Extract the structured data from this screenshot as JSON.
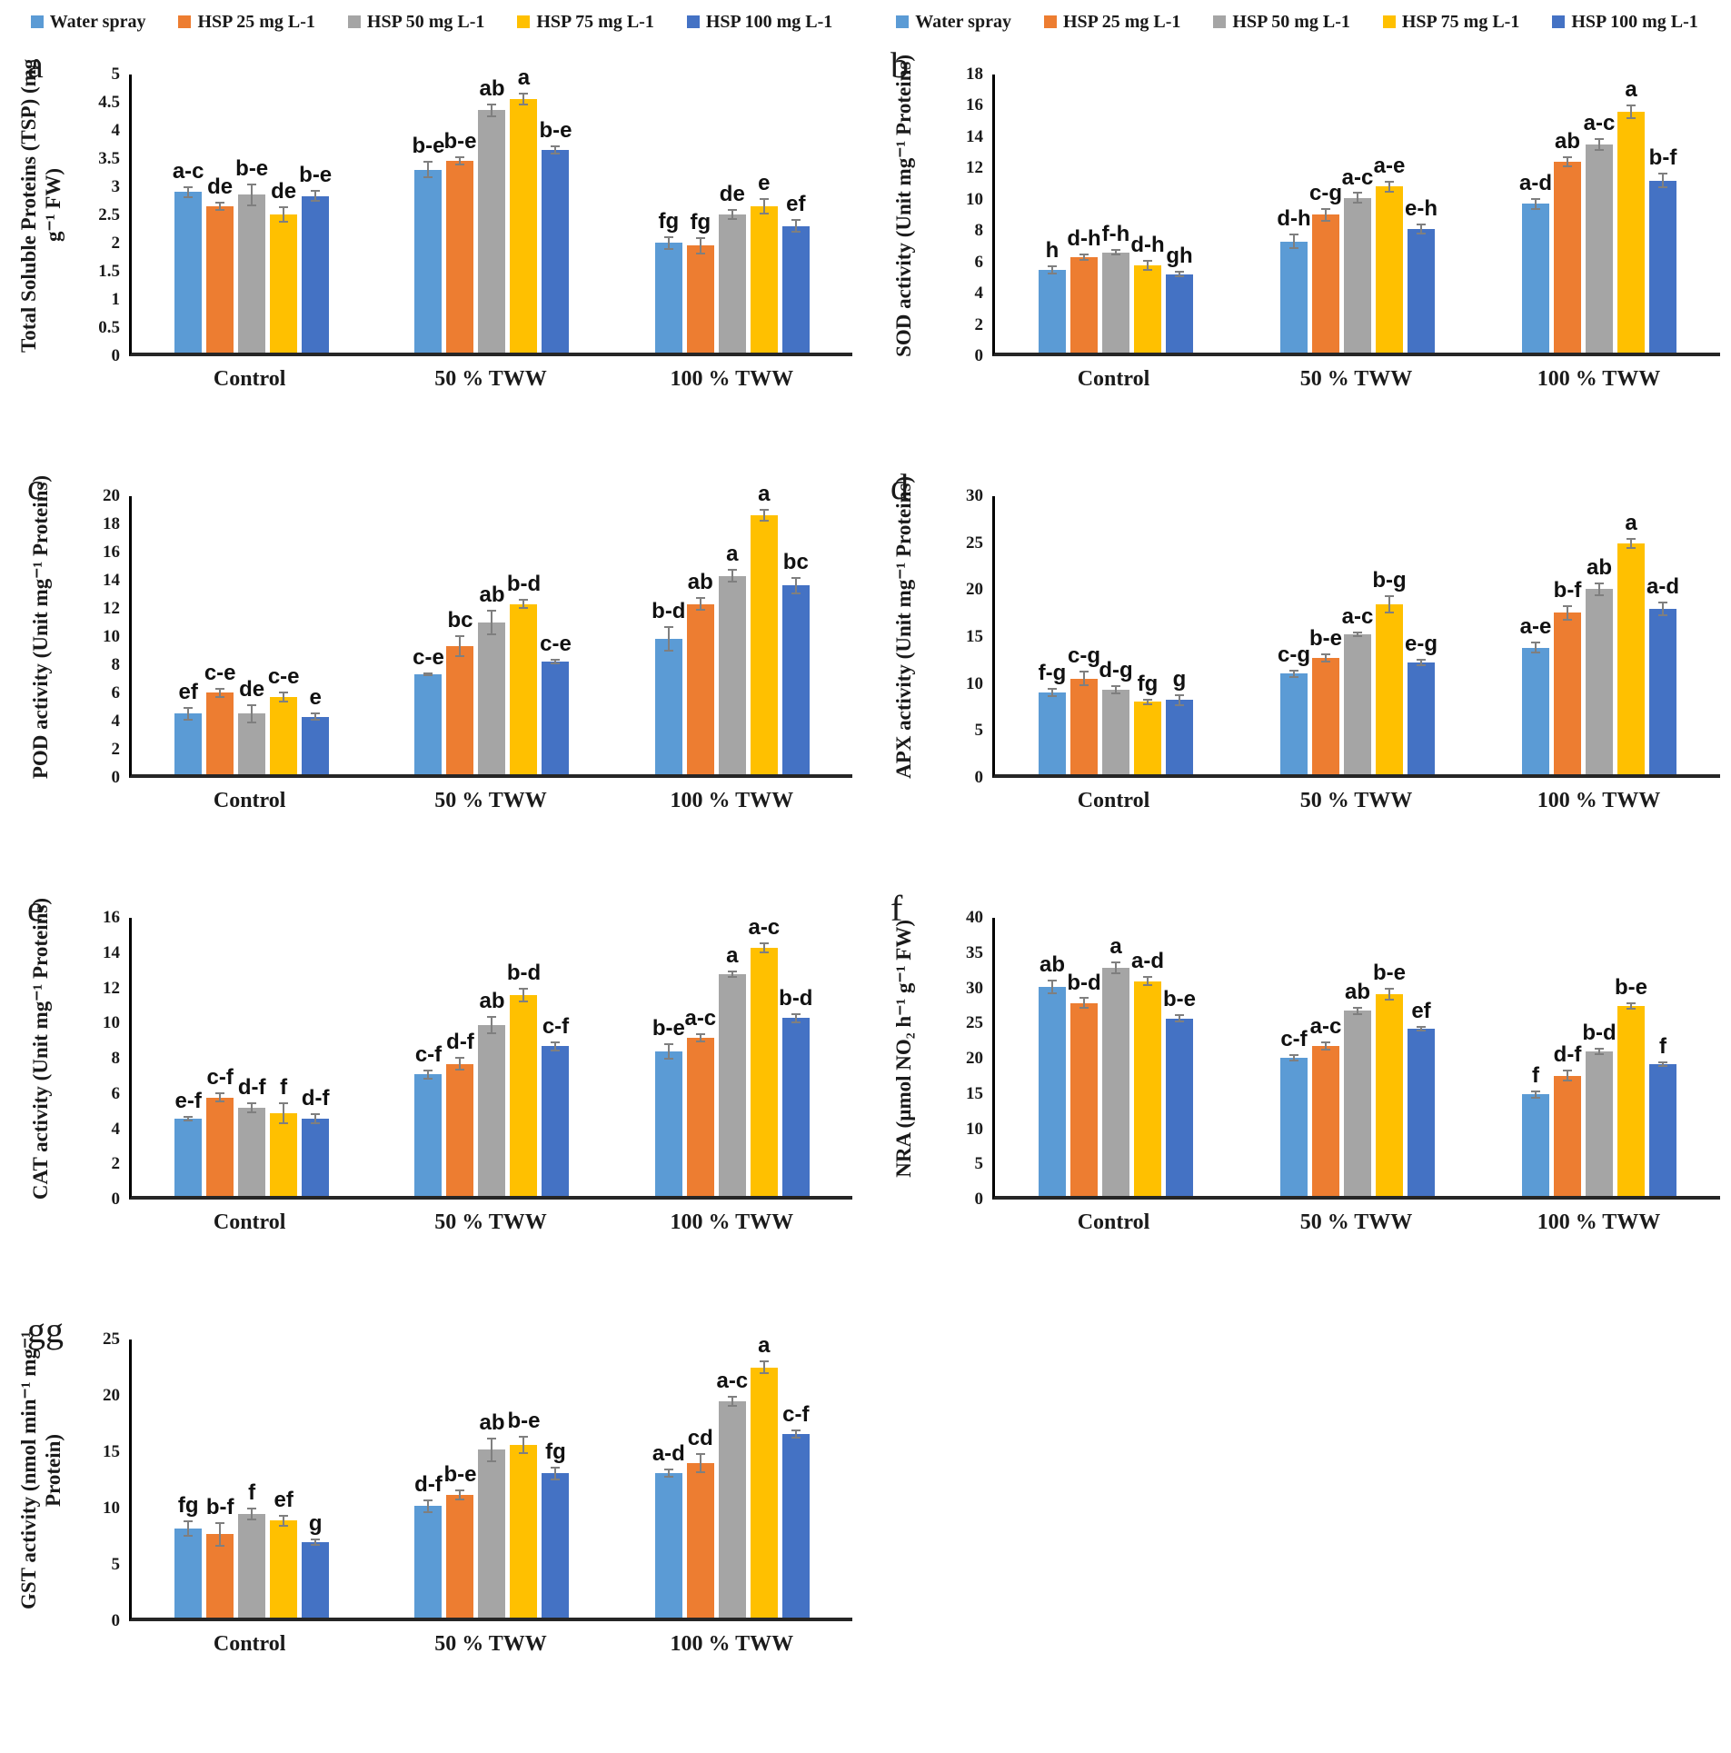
{
  "colors": {
    "series": [
      "#5B9BD5",
      "#ED7D31",
      "#A5A5A5",
      "#FFC000",
      "#4472C4"
    ],
    "axis": "#000000",
    "error_bar": "#7f7f7f",
    "text": "#1a1a1a"
  },
  "legend": {
    "items": [
      "Water spray",
      "HSP 25 mg L-1",
      "HSP 50 mg L-1",
      "HSP 75 mg L-1",
      "HSP 100 mg L-1"
    ],
    "position": "top"
  },
  "categories": [
    "Control",
    "50 % TWW",
    "100 % TWW"
  ],
  "chart_data": [
    {
      "id": "a",
      "panel_label": "a",
      "type": "bar",
      "grid": false,
      "ylabel": "Total Soluble Proteins (TSP) (mg g⁻¹ FW)",
      "xlabel": "",
      "ylim": [
        0,
        5
      ],
      "ytick_step": 0.5,
      "categories": [
        "Control",
        "50 % TWW",
        "100 % TWW"
      ],
      "series": [
        {
          "name": "Water spray",
          "values": [
            2.85,
            3.25,
            1.95
          ],
          "errors": [
            0.1,
            0.15,
            0.12
          ],
          "letters": [
            "a-c",
            "b-e",
            "fg"
          ]
        },
        {
          "name": "HSP 25 mg L-1",
          "values": [
            2.6,
            3.4,
            1.9
          ],
          "errors": [
            0.08,
            0.08,
            0.15
          ],
          "letters": [
            "de",
            "b-e",
            "fg"
          ]
        },
        {
          "name": "HSP 50 mg L-1",
          "values": [
            2.8,
            4.3,
            2.45
          ],
          "errors": [
            0.2,
            0.12,
            0.1
          ],
          "letters": [
            "b-e",
            "ab",
            "de"
          ]
        },
        {
          "name": "HSP 75 mg L-1",
          "values": [
            2.45,
            4.5,
            2.6
          ],
          "errors": [
            0.15,
            0.12,
            0.15
          ],
          "letters": [
            "de",
            "a",
            "e"
          ]
        },
        {
          "name": "HSP 100 mg L-1",
          "values": [
            2.78,
            3.6,
            2.25
          ],
          "errors": [
            0.1,
            0.08,
            0.12
          ],
          "letters": [
            "b-e",
            "b-e",
            "ef"
          ]
        }
      ]
    },
    {
      "id": "b",
      "panel_label": "b",
      "type": "bar",
      "grid": false,
      "ylabel": "SOD activity (Unit  mg⁻¹ Proteins)",
      "xlabel": "",
      "ylim": [
        0,
        18
      ],
      "ytick_step": 2,
      "categories": [
        "Control",
        "50 % TWW",
        "100 % TWW"
      ],
      "series": [
        {
          "name": "Water spray",
          "values": [
            5.3,
            7.1,
            9.5
          ],
          "errors": [
            0.3,
            0.5,
            0.4
          ],
          "letters": [
            "h",
            "d-h",
            "a-d"
          ]
        },
        {
          "name": "HSP 25 mg L-1",
          "values": [
            6.1,
            8.8,
            12.2
          ],
          "errors": [
            0.25,
            0.45,
            0.35
          ],
          "letters": [
            "d-h",
            "c-g",
            "ab"
          ]
        },
        {
          "name": "HSP 50 mg L-1",
          "values": [
            6.4,
            9.9,
            13.3
          ],
          "errors": [
            0.2,
            0.35,
            0.4
          ],
          "letters": [
            "f-h",
            "a-c",
            "a-c"
          ]
        },
        {
          "name": "HSP 75 mg L-1",
          "values": [
            5.6,
            10.6,
            15.4
          ],
          "errors": [
            0.35,
            0.4,
            0.45
          ],
          "letters": [
            "d-h",
            "a-e",
            "a"
          ]
        },
        {
          "name": "HSP 100 mg L-1",
          "values": [
            5.0,
            7.9,
            11.0
          ],
          "errors": [
            0.2,
            0.35,
            0.5
          ],
          "letters": [
            "gh",
            "e-h",
            "b-f"
          ]
        }
      ]
    },
    {
      "id": "c",
      "panel_label": "c",
      "type": "bar",
      "grid": false,
      "ylabel": "POD activity (Unit  mg⁻¹ Proteins)",
      "xlabel": "",
      "ylim": [
        0,
        20
      ],
      "ytick_step": 2,
      "categories": [
        "Control",
        "50 % TWW",
        "100 % TWW"
      ],
      "series": [
        {
          "name": "Water spray",
          "values": [
            4.3,
            7.1,
            9.6
          ],
          "errors": [
            0.5,
            0.15,
            0.9
          ],
          "letters": [
            "ef",
            "c-e",
            "b-d"
          ]
        },
        {
          "name": "HSP 25 mg L-1",
          "values": [
            5.8,
            9.1,
            12.1
          ],
          "errors": [
            0.35,
            0.8,
            0.5
          ],
          "letters": [
            "c-e",
            "bc",
            "ab"
          ]
        },
        {
          "name": "HSP 50 mg L-1",
          "values": [
            4.3,
            10.8,
            14.1
          ],
          "errors": [
            0.7,
            0.9,
            0.5
          ],
          "letters": [
            "de",
            "ab",
            "a"
          ]
        },
        {
          "name": "HSP 75 mg L-1",
          "values": [
            5.5,
            12.1,
            18.4
          ],
          "errors": [
            0.4,
            0.35,
            0.45
          ],
          "letters": [
            "c-e",
            "b-d",
            "a"
          ]
        },
        {
          "name": "HSP 100 mg L-1",
          "values": [
            4.1,
            8.0,
            13.4
          ],
          "errors": [
            0.3,
            0.2,
            0.6
          ],
          "letters": [
            "e",
            "c-e",
            "bc"
          ]
        }
      ]
    },
    {
      "id": "d",
      "panel_label": "d",
      "type": "bar",
      "grid": false,
      "ylabel": "APX activity (Unit mg⁻¹ Proteins)",
      "xlabel": "",
      "ylim": [
        0,
        30
      ],
      "ytick_step": 5,
      "categories": [
        "Control",
        "50 % TWW",
        "100 % TWW"
      ],
      "series": [
        {
          "name": "Water spray",
          "values": [
            8.7,
            10.7,
            13.5
          ],
          "errors": [
            0.5,
            0.4,
            0.6
          ],
          "letters": [
            "f-g",
            "c-g",
            "a-e"
          ]
        },
        {
          "name": "HSP 25 mg L-1",
          "values": [
            10.2,
            12.4,
            17.2
          ],
          "errors": [
            0.8,
            0.5,
            0.8
          ],
          "letters": [
            "c-g",
            "b-e",
            "b-f"
          ]
        },
        {
          "name": "HSP 50 mg L-1",
          "values": [
            9.0,
            14.9,
            19.7
          ],
          "errors": [
            0.5,
            0.3,
            0.7
          ],
          "letters": [
            "d-g",
            "a-c",
            "ab"
          ]
        },
        {
          "name": "HSP 75 mg L-1",
          "values": [
            7.7,
            18.1,
            24.6
          ],
          "errors": [
            0.3,
            1.0,
            0.6
          ],
          "letters": [
            "fg",
            "b-g",
            "a"
          ]
        },
        {
          "name": "HSP 100 mg L-1",
          "values": [
            7.9,
            11.9,
            17.6
          ],
          "errors": [
            0.6,
            0.4,
            0.8
          ],
          "letters": [
            "g",
            "e-g",
            "a-d"
          ]
        }
      ]
    },
    {
      "id": "e",
      "panel_label": "e",
      "type": "bar",
      "grid": false,
      "ylabel": "CAT activity (Unit mg⁻¹ Proteins)",
      "xlabel": "",
      "ylim": [
        0,
        16
      ],
      "ytick_step": 2,
      "categories": [
        "Control",
        "50 % TWW",
        "100 % TWW"
      ],
      "series": [
        {
          "name": "Water spray",
          "values": [
            4.4,
            6.9,
            8.2
          ],
          "errors": [
            0.15,
            0.3,
            0.45
          ],
          "letters": [
            "e-f",
            "c-f",
            "b-e"
          ]
        },
        {
          "name": "HSP 25 mg L-1",
          "values": [
            5.6,
            7.5,
            9.0
          ],
          "errors": [
            0.3,
            0.4,
            0.25
          ],
          "letters": [
            "c-f",
            "d-f",
            "a-c"
          ]
        },
        {
          "name": "HSP 50 mg L-1",
          "values": [
            5.0,
            9.7,
            12.6
          ],
          "errors": [
            0.3,
            0.5,
            0.2
          ],
          "letters": [
            "d-f",
            "ab",
            "a"
          ]
        },
        {
          "name": "HSP 75 mg L-1",
          "values": [
            4.7,
            11.4,
            14.1
          ],
          "errors": [
            0.6,
            0.4,
            0.3
          ],
          "letters": [
            "f",
            "b-d",
            "a-c"
          ]
        },
        {
          "name": "HSP 100 mg L-1",
          "values": [
            4.4,
            8.5,
            10.1
          ],
          "errors": [
            0.3,
            0.3,
            0.3
          ],
          "letters": [
            "d-f",
            "c-f",
            "b-d"
          ]
        }
      ]
    },
    {
      "id": "f",
      "panel_label": "f",
      "type": "bar",
      "grid": false,
      "ylabel": "NRA (µmol NO₂ h⁻¹ g⁻¹ FW)",
      "xlabel": "",
      "ylim": [
        0,
        40
      ],
      "ytick_step": 5,
      "categories": [
        "Control",
        "50 % TWW",
        "100 % TWW"
      ],
      "series": [
        {
          "name": "Water spray",
          "values": [
            29.7,
            19.6,
            14.4
          ],
          "errors": [
            1.0,
            0.5,
            0.6
          ],
          "letters": [
            "ab",
            "c-f",
            "f"
          ]
        },
        {
          "name": "HSP 25 mg L-1",
          "values": [
            27.4,
            21.3,
            17.1
          ],
          "errors": [
            0.8,
            0.6,
            0.9
          ],
          "letters": [
            "b-d",
            "a-c",
            "d-f"
          ]
        },
        {
          "name": "HSP 50 mg L-1",
          "values": [
            32.4,
            26.3,
            20.5
          ],
          "errors": [
            0.9,
            0.6,
            0.5
          ],
          "letters": [
            "a",
            "ab",
            "b-d"
          ]
        },
        {
          "name": "HSP 75 mg L-1",
          "values": [
            30.5,
            28.6,
            27.0
          ],
          "errors": [
            0.7,
            0.9,
            0.5
          ],
          "letters": [
            "a-d",
            "b-e",
            "b-e"
          ]
        },
        {
          "name": "HSP 100 mg L-1",
          "values": [
            25.2,
            23.7,
            18.7
          ],
          "errors": [
            0.6,
            0.4,
            0.4
          ],
          "letters": [
            "b-e",
            "ef",
            "f"
          ]
        }
      ]
    },
    {
      "id": "g",
      "panel_label": "gg",
      "type": "bar",
      "grid": false,
      "ylabel": "GST activity (nmol min⁻¹ mg⁻¹ Protein)",
      "xlabel": "",
      "ylim": [
        0,
        25
      ],
      "ytick_step": 5,
      "categories": [
        "Control",
        "50 % TWW",
        "100 % TWW"
      ],
      "series": [
        {
          "name": "Water spray",
          "values": [
            7.9,
            9.9,
            12.8
          ],
          "errors": [
            0.7,
            0.6,
            0.4
          ],
          "letters": [
            "fg",
            "d-f",
            "a-d"
          ]
        },
        {
          "name": "HSP 25 mg L-1",
          "values": [
            7.4,
            10.9,
            13.7
          ],
          "errors": [
            1.1,
            0.5,
            0.9
          ],
          "letters": [
            "b-f",
            "b-e",
            "cd"
          ]
        },
        {
          "name": "HSP 50 mg L-1",
          "values": [
            9.2,
            14.9,
            19.2
          ],
          "errors": [
            0.6,
            1.1,
            0.5
          ],
          "letters": [
            "f",
            "ab",
            "a-c"
          ]
        },
        {
          "name": "HSP 75 mg L-1",
          "values": [
            8.6,
            15.3,
            22.2
          ],
          "errors": [
            0.5,
            0.8,
            0.6
          ],
          "letters": [
            "ef",
            "b-e",
            "a"
          ]
        },
        {
          "name": "HSP 100 mg L-1",
          "values": [
            6.7,
            12.8,
            16.3
          ],
          "errors": [
            0.3,
            0.6,
            0.4
          ],
          "letters": [
            "g",
            "fg",
            "c-f"
          ]
        }
      ]
    }
  ]
}
